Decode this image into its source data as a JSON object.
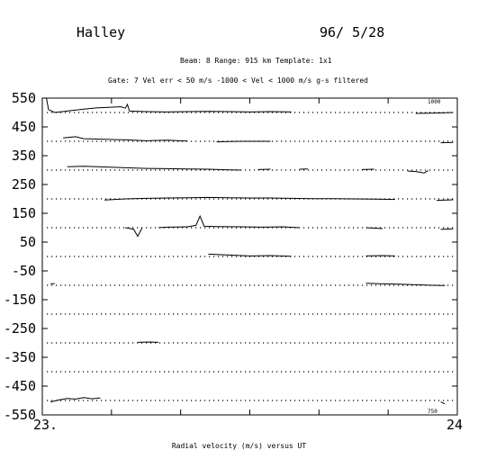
{
  "header": {
    "station": "Halley",
    "date": "96/ 5/28",
    "params_line1": "Beam:  8    Range:  915 km    Template: 1x1",
    "params_line2": "Gate:  7    Vel err < 50 m/s    -1000 < Vel < 1000 m/s    g-s filtered"
  },
  "chart_data": {
    "type": "line",
    "title": "",
    "xlabel": "Radial velocity (m/s)  versus  UT",
    "ylabel": "",
    "x_tick_labels": [
      "23.",
      "24"
    ],
    "xlim": [
      23.0,
      24.0
    ],
    "ylim": [
      -550,
      550
    ],
    "y_ticks": [
      550,
      450,
      350,
      250,
      150,
      50,
      -50,
      -150,
      -250,
      -350,
      -450,
      -550
    ],
    "grid": "dotted baselines at 500, 400, 300, 200, 100, 0, -100, -200, -300, -400, -500",
    "corner_labels": {
      "top_right": "1000",
      "bottom_right": "750"
    },
    "series": [
      {
        "baseline": 500,
        "segments": [
          [
            [
              23.01,
              550
            ],
            [
              23.015,
              510
            ],
            [
              23.03,
              500
            ],
            [
              23.06,
              505
            ],
            [
              23.1,
              512
            ],
            [
              23.13,
              516
            ],
            [
              23.16,
              518
            ],
            [
              23.19,
              520
            ],
            [
              23.2,
              515
            ],
            [
              23.205,
              528
            ],
            [
              23.21,
              505
            ],
            [
              23.25,
              503
            ],
            [
              23.3,
              502
            ],
            [
              23.35,
              503
            ],
            [
              23.4,
              504
            ],
            [
              23.45,
              503
            ],
            [
              23.5,
              502
            ],
            [
              23.55,
              503
            ],
            [
              23.6,
              502
            ]
          ],
          [
            [
              23.9,
              497
            ],
            [
              23.95,
              498
            ],
            [
              23.99,
              500
            ]
          ]
        ]
      },
      {
        "baseline": 400,
        "segments": [
          [
            [
              23.05,
              412
            ],
            [
              23.08,
              416
            ],
            [
              23.1,
              409
            ],
            [
              23.15,
              407
            ],
            [
              23.2,
              405
            ],
            [
              23.25,
              402
            ],
            [
              23.3,
              404
            ],
            [
              23.35,
              401
            ]
          ],
          [
            [
              23.42,
              398
            ],
            [
              23.48,
              400
            ],
            [
              23.55,
              400
            ]
          ],
          [
            [
              23.96,
              395
            ],
            [
              23.99,
              396
            ]
          ]
        ]
      },
      {
        "baseline": 300,
        "segments": [
          [
            [
              23.06,
              312
            ],
            [
              23.1,
              313
            ],
            [
              23.15,
              311
            ],
            [
              23.2,
              308
            ],
            [
              23.25,
              306
            ],
            [
              23.3,
              305
            ],
            [
              23.35,
              304
            ],
            [
              23.4,
              303
            ],
            [
              23.45,
              301
            ],
            [
              23.48,
              300
            ]
          ],
          [
            [
              23.52,
              302
            ],
            [
              23.55,
              303
            ]
          ],
          [
            [
              23.62,
              303
            ],
            [
              23.64,
              304
            ]
          ],
          [
            [
              23.77,
              302
            ],
            [
              23.8,
              303
            ]
          ],
          [
            [
              23.88,
              297
            ],
            [
              23.9,
              295
            ],
            [
              23.92,
              290
            ],
            [
              23.93,
              298
            ]
          ]
        ]
      },
      {
        "baseline": 200,
        "segments": [
          [
            [
              23.15,
              196
            ],
            [
              23.2,
              200
            ],
            [
              23.25,
              202
            ],
            [
              23.3,
              203
            ],
            [
              23.35,
              204
            ],
            [
              23.4,
              205
            ],
            [
              23.45,
              204
            ],
            [
              23.5,
              203
            ],
            [
              23.55,
              203
            ],
            [
              23.6,
              202
            ],
            [
              23.65,
              201
            ],
            [
              23.7,
              201
            ],
            [
              23.75,
              200
            ],
            [
              23.8,
              199
            ],
            [
              23.85,
              198
            ]
          ],
          [
            [
              23.95,
              195
            ],
            [
              23.99,
              197
            ]
          ]
        ]
      },
      {
        "baseline": 100,
        "segments": [
          [
            [
              23.2,
              100
            ],
            [
              23.22,
              95
            ],
            [
              23.23,
              70
            ],
            [
              23.24,
              98
            ]
          ],
          [
            [
              23.28,
              100
            ],
            [
              23.3,
              102
            ],
            [
              23.35,
              103
            ]
          ],
          [
            [
              23.35,
              103
            ],
            [
              23.37,
              108
            ],
            [
              23.38,
              140
            ],
            [
              23.39,
              105
            ],
            [
              23.42,
              104
            ],
            [
              23.48,
              103
            ],
            [
              23.53,
              102
            ],
            [
              23.58,
              103
            ],
            [
              23.62,
              100
            ]
          ],
          [
            [
              23.78,
              100
            ],
            [
              23.82,
              97
            ]
          ],
          [
            [
              23.96,
              94
            ],
            [
              23.99,
              96
            ]
          ]
        ]
      },
      {
        "baseline": 0,
        "segments": [
          [
            [
              23.4,
              8
            ],
            [
              23.45,
              5
            ],
            [
              23.5,
              2
            ],
            [
              23.55,
              3
            ],
            [
              23.6,
              1
            ]
          ],
          [
            [
              23.78,
              2
            ],
            [
              23.82,
              3
            ],
            [
              23.85,
              2
            ]
          ]
        ]
      },
      {
        "baseline": -100,
        "segments": [
          [
            [
              23.02,
              -95
            ],
            [
              23.03,
              -94
            ]
          ],
          [
            [
              23.78,
              -93
            ],
            [
              23.82,
              -95
            ],
            [
              23.86,
              -96
            ],
            [
              23.9,
              -98
            ],
            [
              23.94,
              -100
            ],
            [
              23.97,
              -101
            ]
          ]
        ]
      },
      {
        "baseline": -300,
        "segments": [
          [
            [
              23.23,
              -298
            ],
            [
              23.26,
              -297
            ],
            [
              23.28,
              -298
            ]
          ]
        ]
      },
      {
        "baseline": -500,
        "segments": [
          [
            [
              23.02,
              -505
            ],
            [
              23.04,
              -498
            ],
            [
              23.06,
              -493
            ],
            [
              23.08,
              -495
            ],
            [
              23.1,
              -490
            ],
            [
              23.12,
              -494
            ],
            [
              23.14,
              -491
            ]
          ],
          [
            [
              23.96,
              -505
            ],
            [
              23.97,
              -512
            ]
          ]
        ]
      }
    ]
  },
  "colors": {
    "ink": "#000000",
    "background": "#ffffff"
  }
}
